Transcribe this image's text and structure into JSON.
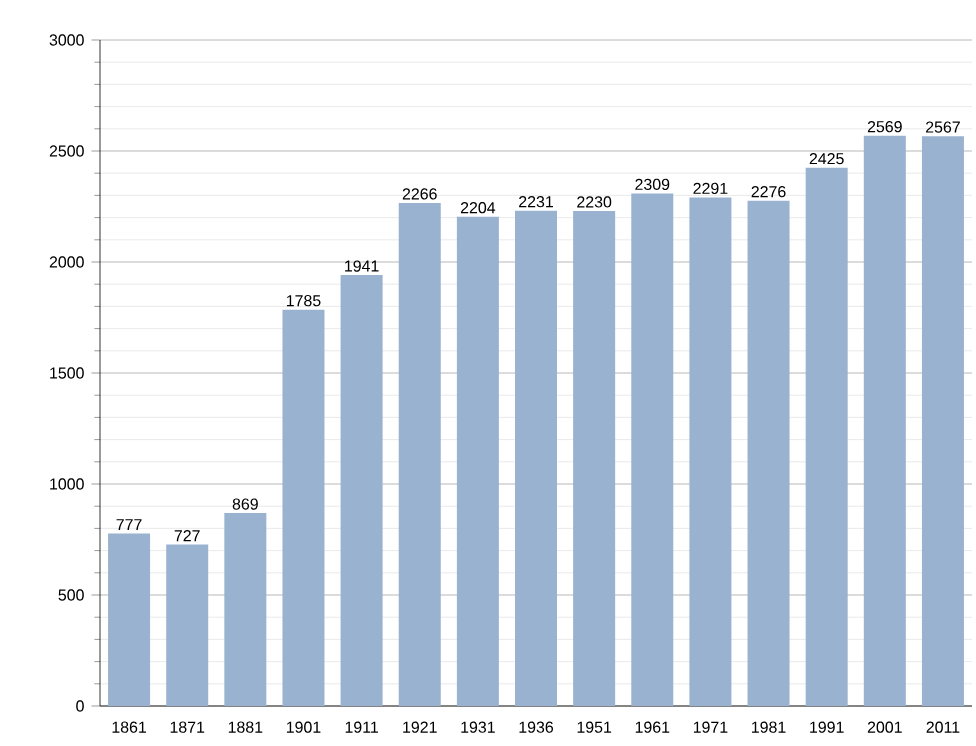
{
  "chart_data": {
    "type": "bar",
    "categories": [
      "1861",
      "1871",
      "1881",
      "1901",
      "1911",
      "1921",
      "1931",
      "1936",
      "1951",
      "1961",
      "1971",
      "1981",
      "1991",
      "2001",
      "2011"
    ],
    "values": [
      777,
      727,
      869,
      1785,
      1941,
      2266,
      2204,
      2231,
      2230,
      2309,
      2291,
      2276,
      2425,
      2569,
      2567
    ],
    "color": "#98b2cf",
    "ylim": [
      0,
      3000
    ],
    "yticks": [
      0,
      500,
      1000,
      1500,
      2000,
      2500,
      3000
    ],
    "grid": "y",
    "data_labels": true
  }
}
